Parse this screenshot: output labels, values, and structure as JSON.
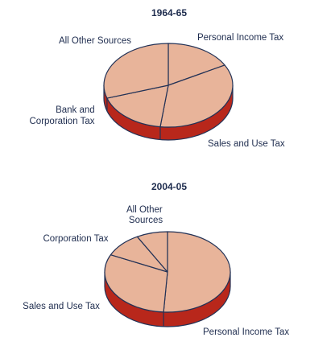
{
  "palette": {
    "top": "#e8b49a",
    "side": "#b8271b",
    "outline": "#233256",
    "text": "#1f2d4f"
  },
  "chart_data": [
    {
      "type": "pie",
      "title": "1964-65",
      "slices": [
        {
          "label": "Personal Income Tax",
          "value": 17
        },
        {
          "label": "Sales and Use Tax",
          "value": 35
        },
        {
          "label": "Bank and Corporation Tax",
          "value": 18
        },
        {
          "label": "All Other Sources",
          "value": 30
        }
      ]
    },
    {
      "type": "pie",
      "title": "2004-05",
      "slices": [
        {
          "label": "Personal Income Tax",
          "value": 51
        },
        {
          "label": "Sales and Use Tax",
          "value": 31
        },
        {
          "label": "Corporation Tax",
          "value": 10
        },
        {
          "label": "All Other Sources",
          "value": 8
        }
      ]
    }
  ]
}
